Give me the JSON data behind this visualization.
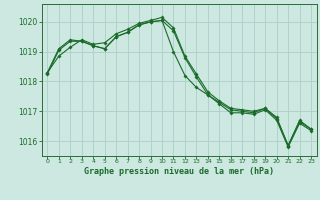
{
  "background_color": "#cce8e0",
  "grid_color": "#aacfc8",
  "line_color": "#1a6b2a",
  "spine_color": "#2d6b3a",
  "title": "Graphe pression niveau de la mer (hPa)",
  "ylim": [
    1015.5,
    1020.6
  ],
  "xlim": [
    -0.5,
    23.5
  ],
  "yticks": [
    1016,
    1017,
    1018,
    1019,
    1020
  ],
  "xticks": [
    0,
    1,
    2,
    3,
    4,
    5,
    6,
    7,
    8,
    9,
    10,
    11,
    12,
    13,
    14,
    15,
    16,
    17,
    18,
    19,
    20,
    21,
    22,
    23
  ],
  "series": [
    [
      1018.3,
      1018.85,
      1019.15,
      1019.4,
      1019.25,
      1019.3,
      1019.6,
      1019.75,
      1019.95,
      1020.05,
      1020.15,
      1019.8,
      1018.85,
      1018.25,
      1017.65,
      1017.35,
      1017.1,
      1017.05,
      1017.0,
      1017.1,
      1016.8,
      1015.85,
      1016.7,
      1016.4
    ],
    [
      1018.3,
      1019.1,
      1019.4,
      1019.35,
      1019.2,
      1019.1,
      1019.5,
      1019.65,
      1019.9,
      1020.0,
      1020.05,
      1019.0,
      1018.2,
      1017.8,
      1017.55,
      1017.3,
      1017.05,
      1017.0,
      1016.95,
      1017.1,
      1016.75,
      1015.85,
      1016.65,
      1016.4
    ],
    [
      1018.25,
      1019.05,
      1019.35,
      1019.35,
      1019.2,
      1019.1,
      1019.5,
      1019.65,
      1019.9,
      1020.0,
      1020.05,
      1019.7,
      1018.8,
      1018.15,
      1017.55,
      1017.25,
      1016.95,
      1016.95,
      1016.9,
      1017.05,
      1016.7,
      1015.8,
      1016.6,
      1016.35
    ]
  ]
}
